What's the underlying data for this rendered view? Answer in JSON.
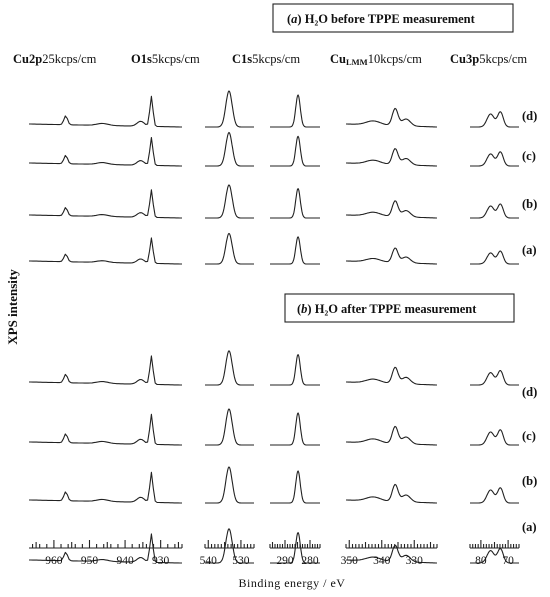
{
  "chart_data": {
    "type": "line",
    "ylabel": "XPS intensity",
    "xlabel": "Binding energy / eV",
    "panels": [
      {
        "id": "a",
        "letter": "a",
        "title": " H₂O before TPPE measurement"
      },
      {
        "id": "b",
        "letter": "b",
        "title": " H₂O after TPPE measurement"
      }
    ],
    "regions": [
      {
        "id": "cu2p",
        "label_bold": "Cu2p",
        "label_sub": "",
        "scale": "25kcps/cm",
        "xlim": [
          967,
          924
        ],
        "tick_labels": [
          960,
          950,
          940,
          930
        ]
      },
      {
        "id": "o1s",
        "label_bold": "O1s",
        "label_sub": "",
        "scale": "5kcps/cm",
        "xlim": [
          541,
          526
        ],
        "tick_labels": [
          540,
          530
        ]
      },
      {
        "id": "c1s",
        "label_bold": "C1s",
        "label_sub": "",
        "scale": "5kcps/cm",
        "xlim": [
          296,
          276
        ],
        "tick_labels": [
          290,
          280
        ]
      },
      {
        "id": "culmm",
        "label_bold": "Cu",
        "label_sub": "LMM",
        "scale": "10kcps/cm",
        "xlim": [
          351,
          323
        ],
        "tick_labels": [
          350,
          340,
          330
        ]
      },
      {
        "id": "cu3p",
        "label_bold": "Cu3p",
        "label_sub": "",
        "scale": "5kcps/cm",
        "xlim": [
          84,
          66
        ],
        "tick_labels": [
          80,
          70
        ]
      }
    ],
    "traces": [
      {
        "panel": "a",
        "sample": "(d)"
      },
      {
        "panel": "a",
        "sample": "(c)"
      },
      {
        "panel": "a",
        "sample": "(b)"
      },
      {
        "panel": "a",
        "sample": "(a)"
      },
      {
        "panel": "b",
        "sample": "(d)"
      },
      {
        "panel": "b",
        "sample": "(c)"
      },
      {
        "panel": "b",
        "sample": "(b)"
      },
      {
        "panel": "b",
        "sample": "(a)"
      }
    ]
  }
}
